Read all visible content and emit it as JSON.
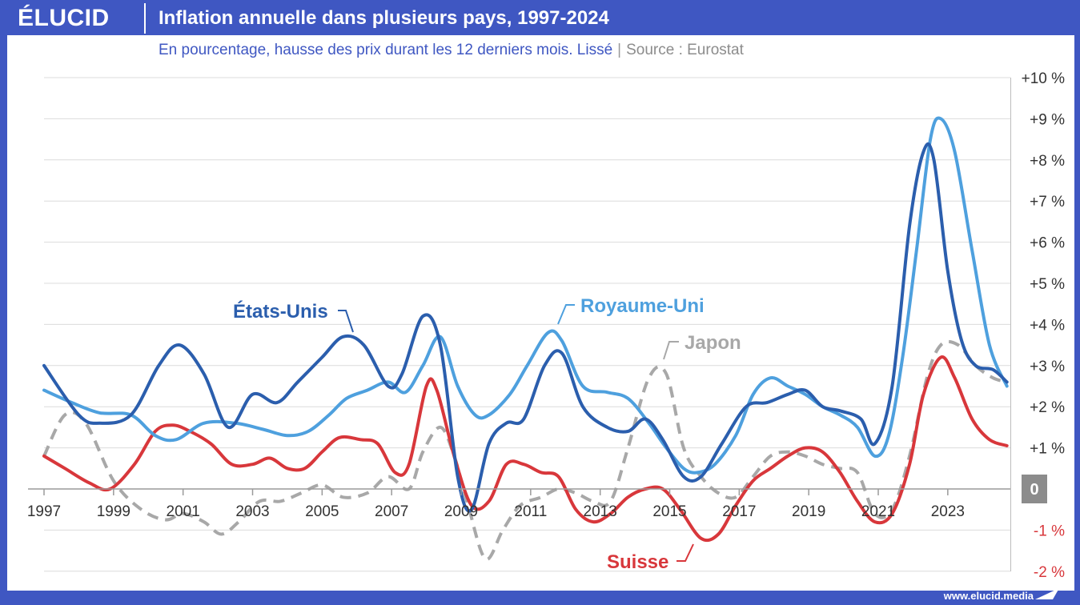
{
  "header": {
    "logo": "ÉLUCID",
    "title": "Inflation annuelle dans plusieurs pays, 1997-2024",
    "subtitle": "En pourcentage, hausse des prix durant les 12 derniers mois. Lissé",
    "separator": "|",
    "source": "Source : Eurostat"
  },
  "footer": {
    "url": "www.elucid.media"
  },
  "colors": {
    "brand": "#3f57c2",
    "us": "#2b5ead",
    "uk": "#4ea0de",
    "japan": "#a8a8a8",
    "switzerland": "#d8373b",
    "zero_badge": "#8c8c8c",
    "negative_tick": "#d8373b"
  },
  "chart_data": {
    "type": "line",
    "title": "Inflation annuelle dans plusieurs pays, 1997-2024",
    "xlabel": "",
    "ylabel": "",
    "xlim": [
      1997,
      2024.8
    ],
    "ylim": [
      -2,
      10
    ],
    "grid": true,
    "x_ticks": [
      "1997",
      "1999",
      "2001",
      "2003",
      "2005",
      "2007",
      "2009",
      "2011",
      "2013",
      "2015",
      "2017",
      "2019",
      "2021",
      "2023"
    ],
    "y_ticks": [
      {
        "value": 10,
        "label": "+10 %"
      },
      {
        "value": 9,
        "label": "+9 %"
      },
      {
        "value": 8,
        "label": "+8 %"
      },
      {
        "value": 7,
        "label": "+7 %"
      },
      {
        "value": 6,
        "label": "+6 %"
      },
      {
        "value": 5,
        "label": "+5 %"
      },
      {
        "value": 4,
        "label": "+4 %"
      },
      {
        "value": 3,
        "label": "+3 %"
      },
      {
        "value": 2,
        "label": "+2 %"
      },
      {
        "value": 1,
        "label": "+1 %"
      },
      {
        "value": 0,
        "label": "0"
      },
      {
        "value": -1,
        "label": "-1 %"
      },
      {
        "value": -2,
        "label": "-2 %"
      }
    ],
    "series": [
      {
        "name": "États-Unis",
        "key": "us",
        "dashed": false,
        "x": [
          1997,
          1998,
          1998.6,
          1999.5,
          2000.3,
          2000.9,
          2001.6,
          2002.3,
          2003,
          2003.7,
          2004.3,
          2005,
          2005.6,
          2006.2,
          2006.9,
          2007.3,
          2007.9,
          2008.4,
          2008.9,
          2009.3,
          2009.8,
          2010.3,
          2010.8,
          2011.4,
          2011.9,
          2012.5,
          2013.2,
          2013.8,
          2014.3,
          2014.8,
          2015.4,
          2015.9,
          2016.5,
          2017.2,
          2017.8,
          2018.4,
          2018.9,
          2019.4,
          2019.9,
          2020.5,
          2020.9,
          2021.4,
          2021.9,
          2022.3,
          2022.6,
          2023,
          2023.4,
          2023.8,
          2024.3,
          2024.7
        ],
        "values": [
          3.0,
          1.8,
          1.6,
          1.8,
          3.0,
          3.5,
          2.8,
          1.5,
          2.3,
          2.1,
          2.6,
          3.2,
          3.7,
          3.5,
          2.5,
          2.8,
          4.2,
          3.5,
          0.3,
          -0.5,
          1.1,
          1.6,
          1.7,
          3.0,
          3.3,
          2.0,
          1.5,
          1.4,
          1.7,
          1.2,
          0.3,
          0.3,
          1.1,
          2.0,
          2.1,
          2.3,
          2.4,
          2.0,
          1.9,
          1.7,
          1.1,
          2.5,
          6.4,
          8.2,
          8.0,
          5.3,
          3.6,
          3.0,
          2.9,
          2.6
        ]
      },
      {
        "name": "Royaume-Uni",
        "key": "uk",
        "dashed": false,
        "x": [
          1997,
          1997.8,
          1998.6,
          1999.5,
          2000.2,
          2000.8,
          2001.6,
          2002.5,
          2003.3,
          2004,
          2004.6,
          2005.2,
          2005.7,
          2006.3,
          2006.9,
          2007.4,
          2007.9,
          2008.4,
          2008.9,
          2009.4,
          2009.8,
          2010.4,
          2010.9,
          2011.5,
          2011.9,
          2012.5,
          2013.2,
          2013.8,
          2014.4,
          2014.9,
          2015.4,
          2015.8,
          2016.3,
          2016.9,
          2017.4,
          2017.9,
          2018.4,
          2018.9,
          2019.4,
          2019.9,
          2020.4,
          2020.9,
          2021.3,
          2021.7,
          2022.1,
          2022.5,
          2022.8,
          2023.2,
          2023.7,
          2024.2,
          2024.7
        ],
        "values": [
          2.4,
          2.1,
          1.85,
          1.8,
          1.3,
          1.2,
          1.6,
          1.6,
          1.45,
          1.3,
          1.4,
          1.8,
          2.2,
          2.4,
          2.6,
          2.35,
          3.0,
          3.7,
          2.5,
          1.8,
          1.8,
          2.3,
          3.0,
          3.8,
          3.6,
          2.5,
          2.35,
          2.2,
          1.6,
          1.0,
          0.5,
          0.4,
          0.6,
          1.3,
          2.3,
          2.7,
          2.5,
          2.3,
          2.0,
          1.8,
          1.5,
          0.8,
          1.3,
          3.2,
          5.8,
          8.5,
          9.0,
          8.2,
          5.8,
          3.5,
          2.5
        ]
      },
      {
        "name": "Japon",
        "key": "japan",
        "dashed": true,
        "x": [
          1997,
          1997.6,
          1998.2,
          1999,
          1999.8,
          2000.5,
          2001,
          2001.6,
          2002.1,
          2002.6,
          2003.2,
          2003.8,
          2004.4,
          2005,
          2005.6,
          2006.3,
          2006.9,
          2007.5,
          2007.9,
          2008.4,
          2008.8,
          2009.2,
          2009.7,
          2010.2,
          2010.7,
          2011.3,
          2011.8,
          2012.3,
          2012.8,
          2013.3,
          2013.8,
          2014.4,
          2014.9,
          2015.4,
          2015.9,
          2016.4,
          2016.9,
          2017.4,
          2017.9,
          2018.4,
          2018.9,
          2019.4,
          2019.9,
          2020.4,
          2020.9,
          2021.4,
          2021.9,
          2022.4,
          2022.8,
          2023.3,
          2023.8,
          2024.3,
          2024.7
        ],
        "values": [
          0.8,
          1.8,
          1.6,
          0.2,
          -0.5,
          -0.75,
          -0.6,
          -0.8,
          -1.1,
          -0.8,
          -0.3,
          -0.3,
          -0.1,
          0.1,
          -0.2,
          -0.1,
          0.3,
          0.0,
          0.9,
          1.5,
          0.8,
          -0.4,
          -1.7,
          -1.0,
          -0.4,
          -0.2,
          0.0,
          -0.1,
          -0.3,
          -0.3,
          1.0,
          2.7,
          2.8,
          1.0,
          0.3,
          -0.1,
          -0.2,
          0.3,
          0.8,
          0.9,
          0.8,
          0.6,
          0.5,
          0.4,
          -0.6,
          -0.5,
          0.8,
          2.7,
          3.5,
          3.5,
          3.0,
          2.7,
          2.6
        ]
      },
      {
        "name": "Suisse",
        "key": "switzerland",
        "dashed": false,
        "x": [
          1997,
          1997.6,
          1998.3,
          1998.9,
          1999.6,
          2000.2,
          2000.7,
          2001.2,
          2001.8,
          2002.4,
          2003,
          2003.5,
          2004,
          2004.5,
          2005,
          2005.5,
          2006.1,
          2006.6,
          2007.1,
          2007.5,
          2008,
          2008.3,
          2008.8,
          2009.3,
          2009.8,
          2010.3,
          2010.8,
          2011.3,
          2011.8,
          2012.3,
          2012.8,
          2013.3,
          2013.8,
          2014.3,
          2014.8,
          2015.3,
          2015.9,
          2016.4,
          2016.9,
          2017.4,
          2017.9,
          2018.4,
          2018.9,
          2019.4,
          2019.9,
          2020.4,
          2020.9,
          2021.4,
          2021.9,
          2022.3,
          2022.8,
          2023.2,
          2023.7,
          2024.2,
          2024.7
        ],
        "values": [
          0.8,
          0.5,
          0.15,
          0.0,
          0.6,
          1.4,
          1.55,
          1.4,
          1.1,
          0.6,
          0.6,
          0.75,
          0.5,
          0.5,
          0.9,
          1.25,
          1.2,
          1.1,
          0.4,
          0.6,
          2.5,
          2.4,
          0.8,
          -0.4,
          -0.3,
          0.6,
          0.6,
          0.4,
          0.3,
          -0.5,
          -0.8,
          -0.6,
          -0.2,
          0.0,
          0.0,
          -0.5,
          -1.2,
          -1.1,
          -0.4,
          0.2,
          0.5,
          0.8,
          1.0,
          0.9,
          0.4,
          -0.3,
          -0.8,
          -0.6,
          0.6,
          2.3,
          3.2,
          2.7,
          1.7,
          1.2,
          1.05
        ]
      }
    ],
    "annotations": [
      {
        "text": "États-Unis",
        "series": "us"
      },
      {
        "text": "Royaume-Uni",
        "series": "uk"
      },
      {
        "text": "Japon",
        "series": "japan"
      },
      {
        "text": "Suisse",
        "series": "switzerland"
      }
    ]
  }
}
